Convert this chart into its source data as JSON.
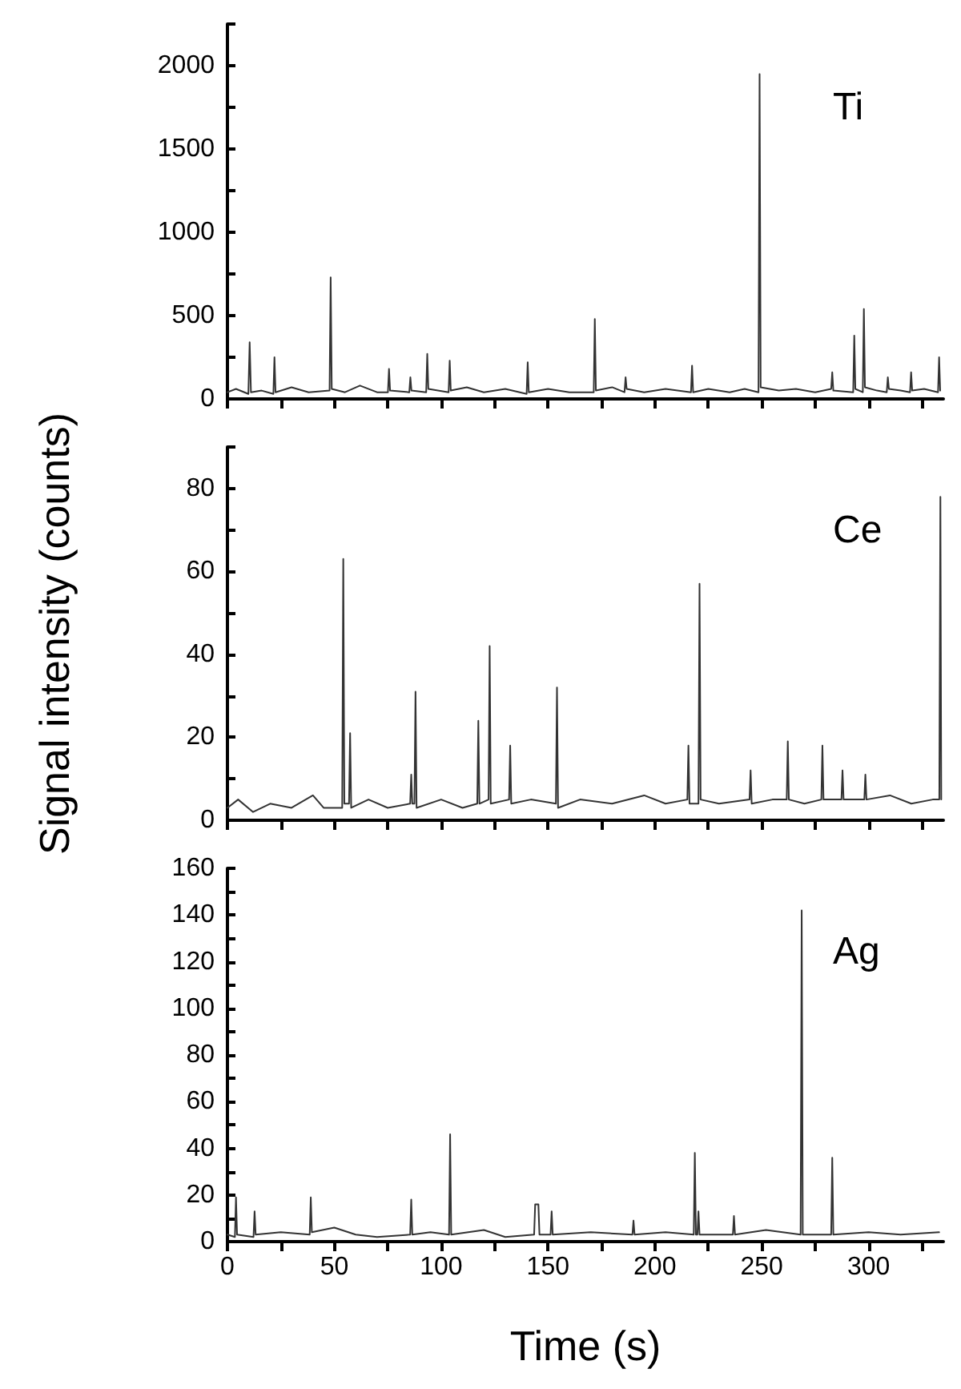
{
  "chart_data": [
    {
      "type": "line",
      "annotations": [
        "Ti"
      ],
      "marker": "none",
      "line_style": "solid",
      "tick_labels": "y",
      "grid": false,
      "xlim": [
        0,
        335
      ],
      "xticks": [
        0,
        50,
        100,
        150,
        200,
        250,
        300
      ],
      "ylim": [
        0,
        2250
      ],
      "yticks": [
        0,
        500,
        1000,
        1500,
        2000
      ],
      "series": [
        {
          "color": "#333333",
          "x": [
            0,
            4,
            9.8,
            10.4,
            11,
            16,
            21.5,
            22,
            22.5,
            30,
            38,
            47.8,
            48.3,
            48.8,
            55,
            62,
            70,
            75.1,
            75.6,
            76.1,
            85.1,
            85.6,
            86.1,
            93,
            93.5,
            94,
            103.5,
            104,
            104.5,
            112,
            120,
            130,
            140,
            140.5,
            141,
            150,
            160,
            171.4,
            171.9,
            172.4,
            180,
            185.8,
            186.3,
            186.8,
            195,
            205,
            216.9,
            217.4,
            217.9,
            225,
            235,
            242,
            248.5,
            249,
            249.5,
            258,
            266,
            275,
            282.5,
            283,
            283.5,
            292.8,
            293.3,
            293.8,
            297.3,
            297.8,
            298.3,
            304,
            308.5,
            309,
            309.5,
            315,
            319.4,
            319.9,
            320.4,
            326,
            332.5,
            333,
            333.5
          ],
          "values": [
            40,
            60,
            30,
            340,
            40,
            50,
            30,
            250,
            40,
            70,
            40,
            50,
            730,
            60,
            40,
            80,
            40,
            40,
            180,
            50,
            40,
            130,
            50,
            40,
            270,
            60,
            40,
            230,
            50,
            70,
            40,
            60,
            30,
            220,
            40,
            60,
            40,
            40,
            480,
            50,
            70,
            40,
            130,
            60,
            40,
            60,
            40,
            200,
            40,
            60,
            40,
            60,
            40,
            1950,
            70,
            50,
            60,
            40,
            60,
            160,
            50,
            40,
            380,
            60,
            40,
            540,
            70,
            50,
            40,
            130,
            60,
            50,
            40,
            160,
            50,
            60,
            40,
            250,
            50
          ]
        }
      ]
    },
    {
      "type": "line",
      "annotations": [
        "Ce"
      ],
      "ylabel": "Signal intensity (counts)",
      "marker": "none",
      "line_style": "solid",
      "tick_labels": "y",
      "grid": false,
      "xlim": [
        0,
        335
      ],
      "xticks": [
        0,
        50,
        100,
        150,
        200,
        250,
        300
      ],
      "ylim": [
        0,
        90
      ],
      "yticks": [
        0,
        20,
        40,
        60,
        80
      ],
      "series": [
        {
          "color": "#333333",
          "x": [
            0,
            5,
            12,
            20,
            30,
            40,
            45,
            53.7,
            54.2,
            54.7,
            56.9,
            57.4,
            57.9,
            66,
            75,
            85.5,
            86,
            86.5,
            87.5,
            88,
            88.5,
            100,
            110,
            116.9,
            117.4,
            117.9,
            122.2,
            122.7,
            123.2,
            131.8,
            132.3,
            132.8,
            142,
            153.7,
            154.2,
            154.7,
            165,
            180,
            195,
            205,
            215.2,
            215.7,
            216.2,
            220.4,
            220.9,
            221.4,
            230,
            244.3,
            244.8,
            245.3,
            255,
            261.7,
            262.2,
            262.7,
            270,
            277.9,
            278.4,
            278.9,
            287.3,
            287.8,
            288.3,
            298,
            298.5,
            299,
            310,
            320,
            330,
            333.1,
            333.6,
            334
          ],
          "values": [
            3,
            5,
            2,
            4,
            3,
            6,
            3,
            3,
            63,
            4,
            4,
            21,
            3,
            5,
            3,
            4,
            11,
            4,
            4,
            31,
            3,
            5,
            3,
            4,
            24,
            4,
            5,
            42,
            4,
            5,
            18,
            4,
            5,
            4,
            32,
            3,
            5,
            4,
            6,
            4,
            5,
            18,
            4,
            4,
            57,
            5,
            4,
            5,
            12,
            4,
            5,
            5,
            19,
            5,
            4,
            5,
            18,
            5,
            5,
            12,
            5,
            5,
            11,
            5,
            6,
            4,
            5,
            5,
            78,
            5
          ]
        }
      ]
    },
    {
      "type": "line",
      "annotations": [
        "Ag"
      ],
      "xlabel": "Time (s)",
      "marker": "none",
      "line_style": "solid",
      "grid": false,
      "xlim": [
        0,
        335
      ],
      "xticks": [
        0,
        50,
        100,
        150,
        200,
        250,
        300
      ],
      "ylim": [
        0,
        160
      ],
      "yticks": [
        0,
        20,
        40,
        60,
        80,
        100,
        120,
        140,
        160
      ],
      "series": [
        {
          "color": "#333333",
          "x": [
            0,
            3.5,
            4,
            4.5,
            12.2,
            12.7,
            13.2,
            25,
            38.5,
            39,
            39.5,
            50,
            60,
            70,
            85.5,
            86,
            86.5,
            95,
            103.7,
            104.2,
            104.7,
            120,
            130,
            143.5,
            144,
            145.5,
            146,
            151.2,
            151.7,
            152.2,
            170,
            189.5,
            190,
            190.5,
            205,
            218.2,
            218.7,
            219.2,
            219.9,
            220.4,
            220.9,
            236.5,
            237,
            237.5,
            252,
            268.2,
            268.7,
            269.2,
            282.5,
            283,
            283.5,
            300,
            315,
            333
          ],
          "values": [
            3,
            2,
            19,
            3,
            2,
            13,
            3,
            4,
            3,
            19,
            4,
            6,
            3,
            2,
            3,
            18,
            3,
            4,
            3,
            46,
            3,
            5,
            2,
            3,
            16,
            16,
            3,
            3,
            13,
            3,
            4,
            3,
            9,
            3,
            4,
            3,
            38,
            3,
            3,
            13,
            3,
            3,
            11,
            3,
            5,
            3,
            142,
            3,
            3,
            36,
            3,
            4,
            3,
            4
          ]
        }
      ]
    }
  ]
}
